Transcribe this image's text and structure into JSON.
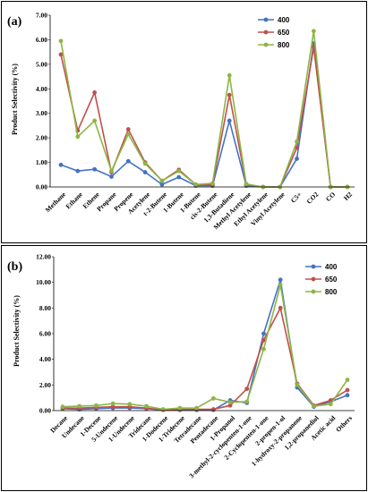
{
  "chart_data": [
    {
      "type": "line",
      "panel_label": "(a)",
      "ylabel": "Product Selectivity (%)",
      "ylim": [
        0,
        7
      ],
      "yticks": [
        "0.00",
        "1.00",
        "2.00",
        "3.00",
        "4.00",
        "5.00",
        "6.00",
        "7.00"
      ],
      "legend_position": "top-right",
      "categories": [
        "Methane",
        "Ethane",
        "Ethene",
        "Propane",
        "Propene",
        "Acetylene",
        "t-2-Butene",
        "1-Butene",
        "1-Butene",
        "cis-2-Butene",
        "1,3-Butadiene",
        "Methyl Acetylene",
        "Ethyl Acetylene",
        "Vinyl Acetylene",
        "C5+",
        "CO2",
        "CO",
        "H2"
      ],
      "series": [
        {
          "name": "400",
          "color": "#4472C4",
          "values": [
            0.9,
            0.65,
            0.72,
            0.42,
            1.05,
            0.6,
            0.1,
            0.4,
            0.05,
            0.05,
            2.7,
            0.05,
            0.0,
            0.0,
            1.15,
            5.85,
            0.0,
            0.0
          ]
        },
        {
          "name": "650",
          "color": "#C0504D",
          "values": [
            5.4,
            2.3,
            3.85,
            0.6,
            2.35,
            1.0,
            0.25,
            0.7,
            0.1,
            0.1,
            3.75,
            0.1,
            0.0,
            0.0,
            1.6,
            5.7,
            0.0,
            0.0
          ]
        },
        {
          "name": "800",
          "color": "#8DB544",
          "values": [
            5.95,
            2.05,
            2.7,
            0.65,
            2.15,
            0.95,
            0.25,
            0.65,
            0.1,
            0.15,
            4.55,
            0.12,
            0.0,
            0.0,
            1.85,
            6.35,
            0.0,
            0.0
          ]
        }
      ]
    },
    {
      "type": "line",
      "panel_label": "(b)",
      "ylabel": "Product Selectivity (%)",
      "ylim": [
        0,
        12
      ],
      "yticks": [
        "0.00",
        "2.00",
        "4.00",
        "6.00",
        "8.00",
        "10.00",
        "12.00"
      ],
      "legend_position": "top-right",
      "categories": [
        "Decane",
        "Undecane",
        "1-Decene",
        "5-Undecene",
        "1-Undecene",
        "Tridecane",
        "1-Dodecene",
        "1-Tridecene",
        "Tetradecane",
        "Pentadecane",
        "1-Propanol",
        "3-methyl-2-cyclopenten-1-one",
        "2-Cyclopenten-1-one",
        "2-propen-1-ol",
        "1-hydroxy-2-propanone",
        "1,2-propanediol",
        "Acetic acid",
        "Others"
      ],
      "series": [
        {
          "name": "400",
          "color": "#4472C4",
          "values": [
            0.15,
            0.1,
            0.15,
            0.2,
            0.2,
            0.15,
            0.05,
            0.05,
            0.05,
            0.05,
            0.8,
            0.6,
            6.0,
            10.2,
            1.8,
            0.3,
            0.7,
            1.2
          ]
        },
        {
          "name": "650",
          "color": "#C0504D",
          "values": [
            0.2,
            0.2,
            0.25,
            0.3,
            0.3,
            0.2,
            0.05,
            0.1,
            0.1,
            0.1,
            0.4,
            1.7,
            5.5,
            8.0,
            2.1,
            0.4,
            0.8,
            1.6
          ]
        },
        {
          "name": "800",
          "color": "#8DB544",
          "values": [
            0.3,
            0.35,
            0.4,
            0.55,
            0.5,
            0.35,
            0.1,
            0.2,
            0.2,
            0.95,
            0.65,
            0.7,
            4.8,
            9.8,
            2.0,
            0.35,
            0.5,
            2.4
          ]
        }
      ]
    }
  ]
}
